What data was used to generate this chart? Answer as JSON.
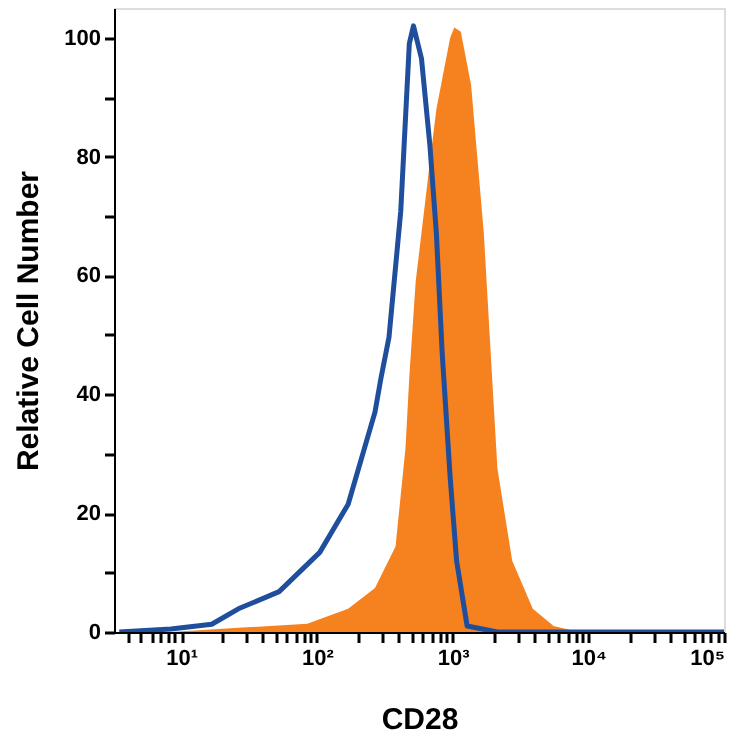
{
  "chart_data": {
    "type": "area",
    "xlabel": "CD28",
    "ylabel": "Relative Cell Number",
    "log": "x",
    "xlim": [
      3.2,
      100000
    ],
    "ylim": [
      0,
      105
    ],
    "xticks": [
      {
        "value": 4,
        "label": null
      },
      {
        "value": 5,
        "label": null
      },
      {
        "value": 6,
        "label": null
      },
      {
        "value": 7,
        "label": null
      },
      {
        "value": 8,
        "label": null
      },
      {
        "value": 9,
        "label": null
      },
      {
        "value": 10,
        "label": "10¹"
      },
      {
        "value": 20,
        "label": null
      },
      {
        "value": 30,
        "label": null
      },
      {
        "value": 40,
        "label": null
      },
      {
        "value": 50,
        "label": null
      },
      {
        "value": 60,
        "label": null
      },
      {
        "value": 70,
        "label": null
      },
      {
        "value": 80,
        "label": null
      },
      {
        "value": 90,
        "label": null
      },
      {
        "value": 100,
        "label": "10²"
      },
      {
        "value": 200,
        "label": null
      },
      {
        "value": 300,
        "label": null
      },
      {
        "value": 400,
        "label": null
      },
      {
        "value": 500,
        "label": null
      },
      {
        "value": 600,
        "label": null
      },
      {
        "value": 700,
        "label": null
      },
      {
        "value": 800,
        "label": null
      },
      {
        "value": 900,
        "label": null
      },
      {
        "value": 1000,
        "label": "10³"
      },
      {
        "value": 2000,
        "label": null
      },
      {
        "value": 3000,
        "label": null
      },
      {
        "value": 4000,
        "label": null
      },
      {
        "value": 5000,
        "label": null
      },
      {
        "value": 6000,
        "label": null
      },
      {
        "value": 7000,
        "label": null
      },
      {
        "value": 8000,
        "label": null
      },
      {
        "value": 9000,
        "label": null
      },
      {
        "value": 10000,
        "label": "10⁴"
      },
      {
        "value": 20000,
        "label": null
      },
      {
        "value": 30000,
        "label": null
      },
      {
        "value": 40000,
        "label": null
      },
      {
        "value": 50000,
        "label": null
      },
      {
        "value": 60000,
        "label": null
      },
      {
        "value": 70000,
        "label": null
      },
      {
        "value": 80000,
        "label": null
      },
      {
        "value": 90000,
        "label": null
      },
      {
        "value": 100000,
        "label": "10⁵"
      }
    ],
    "yticks": [
      0,
      {
        "value": 10,
        "label": null
      },
      20,
      {
        "value": 30,
        "label": null
      },
      40,
      {
        "value": 50,
        "label": null
      },
      60,
      {
        "value": 70,
        "label": null
      },
      80,
      {
        "value": 90,
        "label": null
      },
      100
    ],
    "grid": false,
    "series": [
      {
        "color": "#f5821f",
        "x": [
          8.4,
          26.4,
          85,
          170,
          268,
          380,
          450,
          480,
          535,
          680,
          760,
          960,
          1030,
          1150,
          1370,
          1700,
          2000,
          2140,
          2750,
          3900,
          5550,
          8500,
          100000
        ],
        "values": [
          0,
          0.7,
          1.4,
          3.9,
          7.4,
          14.4,
          31,
          43,
          59,
          79,
          88,
          100,
          101.7,
          101,
          92,
          67,
          39,
          27.5,
          12,
          3.9,
          1,
          0,
          0
        ]
      },
      {
        "type": "line",
        "color": "#1f4e9c",
        "x": [
          3.5,
          8.4,
          16.8,
          26.4,
          52.7,
          105,
          170,
          268,
          296,
          340,
          415,
          480,
          515,
          590,
          680,
          760,
          838,
          960,
          1070,
          1280,
          2140,
          100000
        ],
        "values": [
          0,
          0.5,
          1.3,
          3.9,
          6.8,
          13.4,
          21.5,
          37,
          42.6,
          49.6,
          70.8,
          99,
          102,
          96.5,
          82,
          67,
          47,
          26,
          12,
          1,
          0,
          0
        ]
      }
    ]
  }
}
